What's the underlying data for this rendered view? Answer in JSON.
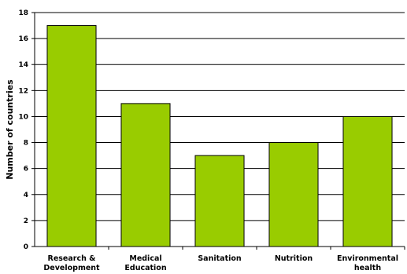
{
  "chart_data": {
    "type": "bar",
    "title": "",
    "xlabel": "",
    "ylabel": "Number of countries",
    "categories": [
      [
        "Research &",
        "Development"
      ],
      [
        "Medical",
        "Education"
      ],
      [
        "Sanitation"
      ],
      [
        "Nutrition"
      ],
      [
        "Environmental",
        "health"
      ]
    ],
    "values": [
      17,
      11,
      7,
      8,
      10
    ],
    "ylim": [
      0,
      18
    ],
    "yticks": [
      "0",
      "2",
      "4",
      "6",
      "8",
      "10",
      "12",
      "14",
      "16",
      "18"
    ],
    "grid": true,
    "bar_color": "#99cc00",
    "bar_stroke": "#000000"
  }
}
